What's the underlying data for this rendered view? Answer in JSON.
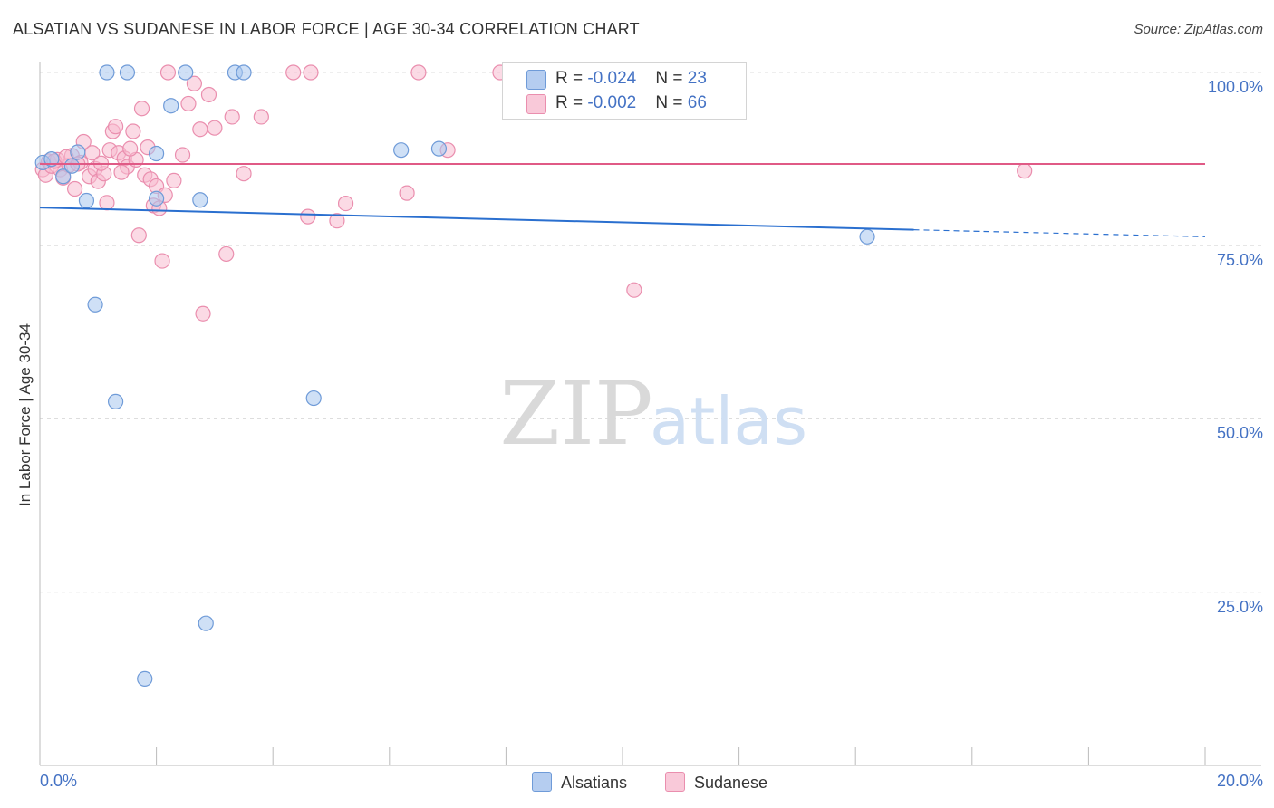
{
  "title": "ALSATIAN VS SUDANESE IN LABOR FORCE | AGE 30-34 CORRELATION CHART",
  "source": "Source: ZipAtlas.com",
  "watermark": {
    "zip": "ZIP",
    "atlas": "atlas"
  },
  "colors": {
    "alsatian_fill": "#a7c6ee",
    "alsatian_stroke": "#6f9bd8",
    "alsatian_line": "#2a6fcf",
    "sudanese_fill": "#f7bcd0",
    "sudanese_stroke": "#ea8eae",
    "sudanese_line": "#e05a86",
    "tick_text": "#4472c4",
    "grid": "#dddddd"
  },
  "legend_top": {
    "alsatian": {
      "r_label": "R = ",
      "r_value": "-0.024",
      "n_label": "N = ",
      "n_value": "23"
    },
    "sudanese": {
      "r_label": "R = ",
      "r_value": "-0.002",
      "n_label": "N = ",
      "n_value": "66"
    }
  },
  "legend_bottom": {
    "alsatians": "Alsatians",
    "sudanese": "Sudanese"
  },
  "chart_data": {
    "type": "scatter",
    "title": "ALSATIAN VS SUDANESE IN LABOR FORCE | AGE 30-34 CORRELATION CHART",
    "xlabel": "",
    "ylabel": "In Labor Force | Age 30-34",
    "xlim": [
      0,
      20
    ],
    "ylim": [
      0,
      102
    ],
    "x_tick_labels": {
      "left": "0.0%",
      "right": "20.0%"
    },
    "y_ticks": [
      {
        "value": 100,
        "label": "100.0%"
      },
      {
        "value": 75,
        "label": "75.0%"
      },
      {
        "value": 50,
        "label": "50.0%"
      },
      {
        "value": 25,
        "label": "25.0%"
      }
    ],
    "series": [
      {
        "name": "Alsatians",
        "r": -0.024,
        "n": 23,
        "trend": {
          "x0": 0,
          "y0": 80.5,
          "x1": 15.0,
          "y1": 77.3,
          "dash_to_x": 20.0,
          "dash_to_y": 76.3
        },
        "points": [
          {
            "x": 0.05,
            "y": 87.0
          },
          {
            "x": 0.2,
            "y": 87.5
          },
          {
            "x": 0.4,
            "y": 85.0
          },
          {
            "x": 0.55,
            "y": 86.5
          },
          {
            "x": 0.65,
            "y": 88.5
          },
          {
            "x": 0.8,
            "y": 81.5
          },
          {
            "x": 1.15,
            "y": 100.0
          },
          {
            "x": 1.5,
            "y": 100.0
          },
          {
            "x": 2.0,
            "y": 81.8
          },
          {
            "x": 2.0,
            "y": 88.3
          },
          {
            "x": 2.25,
            "y": 95.2
          },
          {
            "x": 2.5,
            "y": 100.0
          },
          {
            "x": 2.75,
            "y": 81.6
          },
          {
            "x": 3.35,
            "y": 100.0
          },
          {
            "x": 3.5,
            "y": 100.0
          },
          {
            "x": 6.2,
            "y": 88.8
          },
          {
            "x": 6.85,
            "y": 89.0
          },
          {
            "x": 14.2,
            "y": 76.3
          },
          {
            "x": 0.95,
            "y": 66.5
          },
          {
            "x": 1.3,
            "y": 52.5
          },
          {
            "x": 4.7,
            "y": 53.0
          },
          {
            "x": 2.85,
            "y": 20.5
          },
          {
            "x": 1.8,
            "y": 12.5
          }
        ]
      },
      {
        "name": "Sudanese",
        "r": -0.002,
        "n": 66,
        "trend": {
          "x0": 0,
          "y0": 86.8,
          "x1": 20.0,
          "y1": 86.8
        },
        "points": [
          {
            "x": 0.05,
            "y": 86.0
          },
          {
            "x": 0.1,
            "y": 85.2
          },
          {
            "x": 0.15,
            "y": 87.2
          },
          {
            "x": 0.2,
            "y": 86.5
          },
          {
            "x": 0.3,
            "y": 87.4
          },
          {
            "x": 0.35,
            "y": 86.0
          },
          {
            "x": 0.4,
            "y": 84.8
          },
          {
            "x": 0.5,
            "y": 86.6
          },
          {
            "x": 0.55,
            "y": 88.0
          },
          {
            "x": 0.6,
            "y": 83.2
          },
          {
            "x": 0.7,
            "y": 87.0
          },
          {
            "x": 0.75,
            "y": 90.0
          },
          {
            "x": 0.85,
            "y": 85.0
          },
          {
            "x": 0.9,
            "y": 88.4
          },
          {
            "x": 0.95,
            "y": 86.1
          },
          {
            "x": 1.0,
            "y": 84.3
          },
          {
            "x": 1.1,
            "y": 85.4
          },
          {
            "x": 1.15,
            "y": 81.2
          },
          {
            "x": 1.2,
            "y": 88.8
          },
          {
            "x": 1.25,
            "y": 91.5
          },
          {
            "x": 1.3,
            "y": 92.2
          },
          {
            "x": 1.35,
            "y": 88.4
          },
          {
            "x": 1.45,
            "y": 87.6
          },
          {
            "x": 1.5,
            "y": 86.4
          },
          {
            "x": 1.6,
            "y": 91.5
          },
          {
            "x": 1.65,
            "y": 87.4
          },
          {
            "x": 1.7,
            "y": 76.5
          },
          {
            "x": 1.75,
            "y": 94.8
          },
          {
            "x": 1.8,
            "y": 85.2
          },
          {
            "x": 1.85,
            "y": 89.2
          },
          {
            "x": 1.9,
            "y": 84.6
          },
          {
            "x": 1.95,
            "y": 80.8
          },
          {
            "x": 2.0,
            "y": 83.6
          },
          {
            "x": 2.1,
            "y": 72.8
          },
          {
            "x": 2.15,
            "y": 82.3
          },
          {
            "x": 2.2,
            "y": 100.0
          },
          {
            "x": 2.3,
            "y": 84.4
          },
          {
            "x": 2.45,
            "y": 88.1
          },
          {
            "x": 2.55,
            "y": 95.5
          },
          {
            "x": 2.65,
            "y": 98.4
          },
          {
            "x": 2.75,
            "y": 91.8
          },
          {
            "x": 2.8,
            "y": 65.2
          },
          {
            "x": 2.9,
            "y": 96.8
          },
          {
            "x": 3.0,
            "y": 92.0
          },
          {
            "x": 3.2,
            "y": 73.8
          },
          {
            "x": 3.3,
            "y": 93.6
          },
          {
            "x": 3.5,
            "y": 85.4
          },
          {
            "x": 3.8,
            "y": 93.6
          },
          {
            "x": 4.35,
            "y": 100.0
          },
          {
            "x": 4.65,
            "y": 100.0
          },
          {
            "x": 4.6,
            "y": 79.2
          },
          {
            "x": 5.1,
            "y": 78.6
          },
          {
            "x": 5.25,
            "y": 81.1
          },
          {
            "x": 6.3,
            "y": 82.6
          },
          {
            "x": 6.5,
            "y": 100.0
          },
          {
            "x": 7.0,
            "y": 88.8
          },
          {
            "x": 7.9,
            "y": 100.0
          },
          {
            "x": 10.2,
            "y": 68.6
          },
          {
            "x": 16.9,
            "y": 85.8
          },
          {
            "x": 0.65,
            "y": 86.8
          },
          {
            "x": 0.25,
            "y": 87.2
          },
          {
            "x": 1.05,
            "y": 86.9
          },
          {
            "x": 1.55,
            "y": 89.0
          },
          {
            "x": 2.05,
            "y": 80.4
          },
          {
            "x": 1.4,
            "y": 85.6
          },
          {
            "x": 0.45,
            "y": 87.8
          }
        ]
      }
    ]
  }
}
